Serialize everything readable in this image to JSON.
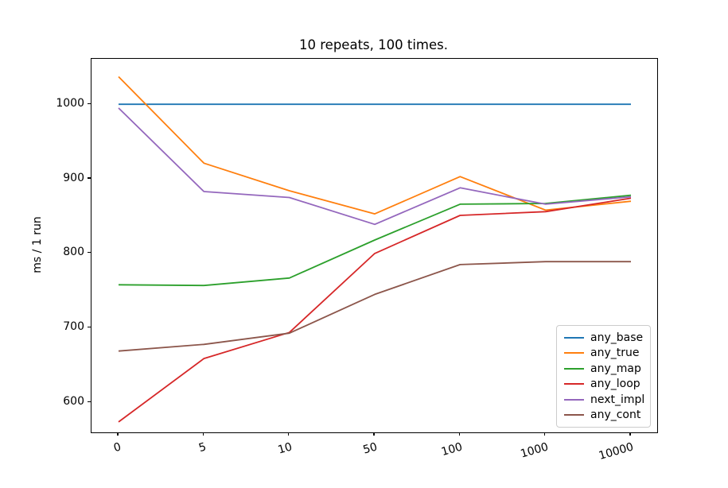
{
  "chart_data": {
    "type": "line",
    "title": "10 repeats, 100 times.",
    "xlabel": "",
    "ylabel": "ms / 1 run",
    "categories": [
      "0",
      "5",
      "10",
      "50",
      "100",
      "1000",
      "10000"
    ],
    "yticks": [
      600,
      700,
      800,
      900,
      1000
    ],
    "ylim": [
      560,
      1061
    ],
    "grid": false,
    "legend_position": "lower right",
    "series": [
      {
        "name": "any_base",
        "color": "#1f77b4",
        "values": [
          1000,
          1000,
          1000,
          1000,
          1000,
          1000,
          1000
        ]
      },
      {
        "name": "any_true",
        "color": "#ff7f0e",
        "values": [
          1037,
          921,
          884,
          853,
          903,
          858,
          870
        ]
      },
      {
        "name": "any_map",
        "color": "#2ca02c",
        "values": [
          758,
          757,
          767,
          818,
          866,
          867,
          878
        ]
      },
      {
        "name": "any_loop",
        "color": "#d62728",
        "values": [
          574,
          659,
          694,
          800,
          851,
          856,
          874
        ]
      },
      {
        "name": "next_impl",
        "color": "#9467bd",
        "values": [
          995,
          883,
          875,
          839,
          888,
          866,
          876
        ]
      },
      {
        "name": "any_cont",
        "color": "#8c564b",
        "values": [
          669,
          678,
          693,
          745,
          785,
          789,
          789
        ]
      }
    ]
  }
}
